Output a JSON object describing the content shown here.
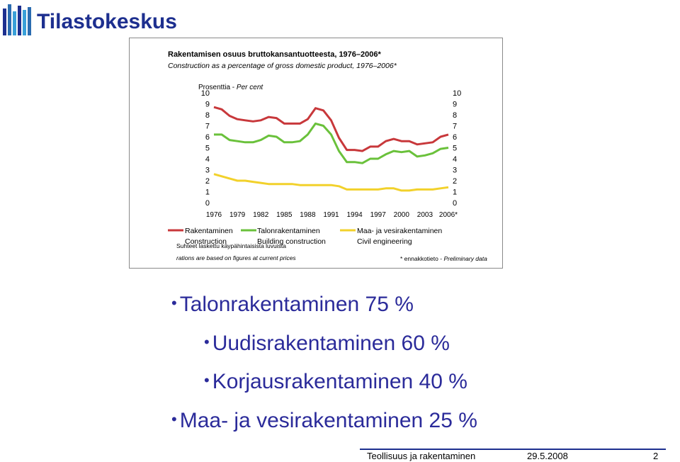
{
  "logo": {
    "text": "Tilastokeskus",
    "colors": [
      "#2b6cb0",
      "#3aa0d8",
      "#1d2f8f"
    ]
  },
  "chart_data": {
    "type": "line",
    "title": "Rakentamisen osuus bruttokansantuotteesta, 1976–2006*",
    "subtitle": "Construction as a percentage of gross domestic product, 1976–2006*",
    "ylabel_fi": "Prosenttia - ",
    "ylabel_en": "Per cent",
    "ylim": [
      0,
      10
    ],
    "yticks": [
      "0",
      "1",
      "2",
      "3",
      "4",
      "5",
      "6",
      "7",
      "8",
      "9",
      "10"
    ],
    "xticks": [
      "1976",
      "1979",
      "1982",
      "1985",
      "1988",
      "1991",
      "1994",
      "1997",
      "2000",
      "2003",
      "2006*"
    ],
    "x": [
      1976,
      1977,
      1978,
      1979,
      1980,
      1981,
      1982,
      1983,
      1984,
      1985,
      1986,
      1987,
      1988,
      1989,
      1990,
      1991,
      1992,
      1993,
      1994,
      1995,
      1996,
      1997,
      1998,
      1999,
      2000,
      2001,
      2002,
      2003,
      2004,
      2005,
      2006
    ],
    "series": [
      {
        "name_fi": "Rakentaminen",
        "name_en": "Construction",
        "color": "#c8383b",
        "values": [
          8.7,
          8.5,
          7.9,
          7.6,
          7.5,
          7.4,
          7.5,
          7.8,
          7.7,
          7.2,
          7.2,
          7.2,
          7.6,
          8.6,
          8.4,
          7.5,
          5.9,
          4.8,
          4.8,
          4.7,
          5.1,
          5.1,
          5.6,
          5.8,
          5.6,
          5.6,
          5.3,
          5.4,
          5.5,
          6.0,
          6.2
        ]
      },
      {
        "name_fi": "Talonrakentaminen",
        "name_en": "Building construction",
        "color": "#6ac13b",
        "values": [
          6.2,
          6.2,
          5.7,
          5.6,
          5.5,
          5.5,
          5.7,
          6.1,
          6.0,
          5.5,
          5.5,
          5.6,
          6.2,
          7.2,
          7.0,
          6.2,
          4.7,
          3.7,
          3.7,
          3.6,
          4.0,
          4.0,
          4.4,
          4.7,
          4.6,
          4.7,
          4.2,
          4.3,
          4.5,
          4.9,
          5.0
        ]
      },
      {
        "name_fi": "Maa- ja vesirakentaminen",
        "name_en": "Civil engineering",
        "color": "#f2d12b",
        "values": [
          2.6,
          2.4,
          2.2,
          2.0,
          2.0,
          1.9,
          1.8,
          1.7,
          1.7,
          1.7,
          1.7,
          1.6,
          1.6,
          1.6,
          1.6,
          1.6,
          1.5,
          1.2,
          1.2,
          1.2,
          1.2,
          1.2,
          1.3,
          1.3,
          1.1,
          1.1,
          1.2,
          1.2,
          1.2,
          1.3,
          1.4
        ]
      }
    ],
    "legend_position": "bottom",
    "grid": false,
    "notes": {
      "line1": "Suhteet laskettu käypähintaisista luvuista",
      "line2": "rations are based on figures at current prices",
      "preliminary_fi": "* ennakkotieto - ",
      "preliminary_en": "Preliminary data"
    }
  },
  "bullets": [
    {
      "text": "Talonrakentaminen  75 %"
    },
    {
      "text": "Uudisrakentaminen 60 %"
    },
    {
      "text": "Korjausrakentaminen 40 %"
    },
    {
      "text": "Maa- ja vesirakentaminen  25 %"
    }
  ],
  "footer": {
    "title": "Teollisuus ja rakentaminen",
    "date": "29.5.2008",
    "page": "2",
    "line_color": "#1d2f8f"
  }
}
